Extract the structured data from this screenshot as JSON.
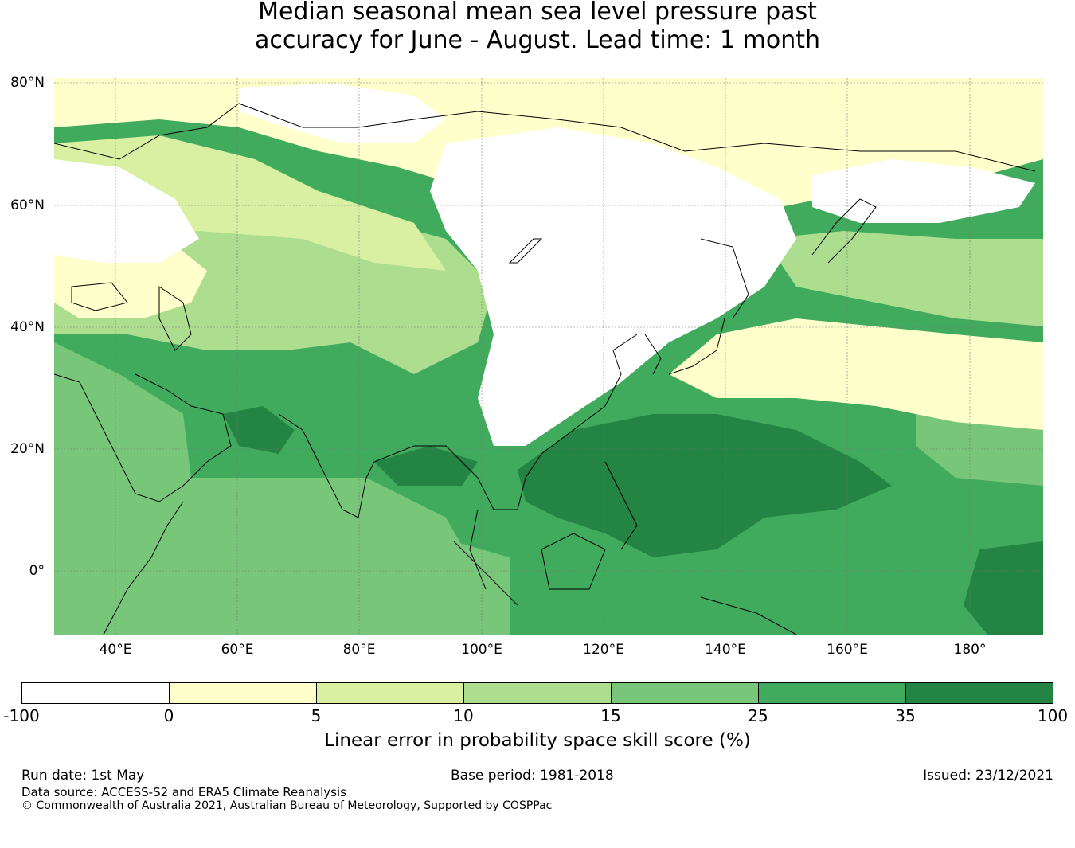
{
  "title": {
    "line1": "Median seasonal mean sea level pressure past",
    "line2": "accuracy for June - August. Lead time: 1 month"
  },
  "map": {
    "lat_labels": [
      "80°N",
      "60°N",
      "40°N",
      "20°N",
      "0°"
    ],
    "lon_labels": [
      "40°E",
      "60°E",
      "80°E",
      "100°E",
      "120°E",
      "140°E",
      "160°E",
      "180°"
    ]
  },
  "colorbar": {
    "ticks": [
      "-100",
      "0",
      "5",
      "10",
      "15",
      "25",
      "35",
      "100"
    ],
    "colors": [
      "#ffffff",
      "#ffffcc",
      "#d9f0a3",
      "#addd8e",
      "#78c679",
      "#41ab5d",
      "#238443"
    ],
    "label": "Linear error in probability space skill score (%)"
  },
  "footer": {
    "run_date": "Run date: 1st May",
    "base_period": "Base period: 1981-2018",
    "issued": "Issued: 23/12/2021",
    "data_source": "Data source: ACCESS-S2 and ERA5 Climate Reanalysis",
    "copyright": "© Commonwealth of Australia 2021, Australian Bureau of Meteorology, Supported by COSPPac"
  }
}
